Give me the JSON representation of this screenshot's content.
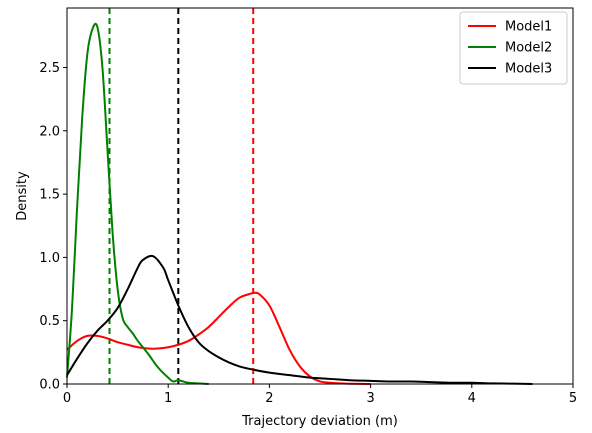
{
  "chart_data": {
    "type": "line",
    "title": "",
    "xlabel": "Trajectory deviation (m)",
    "ylabel": "Density",
    "xlim": [
      0,
      5
    ],
    "ylim": [
      0,
      2.97
    ],
    "xticks": [
      "0",
      "1",
      "2",
      "3",
      "4",
      "5"
    ],
    "yticks": [
      "0.0",
      "0.5",
      "1.0",
      "1.5",
      "2.0",
      "2.5"
    ],
    "grid": false,
    "legend_position": "top-right",
    "series": [
      {
        "name": "Model1",
        "color": "#ff0000",
        "x": [
          0,
          0.1,
          0.2,
          0.3,
          0.4,
          0.5,
          0.6,
          0.7,
          0.8,
          0.9,
          1.0,
          1.1,
          1.2,
          1.3,
          1.4,
          1.5,
          1.6,
          1.7,
          1.8,
          1.85,
          1.9,
          2.0,
          2.1,
          2.2,
          2.3,
          2.4,
          2.5,
          2.6,
          2.7,
          2.8,
          3.0
        ],
        "y": [
          0.27,
          0.34,
          0.38,
          0.38,
          0.36,
          0.33,
          0.31,
          0.29,
          0.28,
          0.28,
          0.29,
          0.31,
          0.34,
          0.39,
          0.45,
          0.53,
          0.61,
          0.68,
          0.71,
          0.72,
          0.71,
          0.62,
          0.45,
          0.27,
          0.14,
          0.06,
          0.02,
          0.01,
          0.005,
          0.002,
          0.0
        ]
      },
      {
        "name": "Model2",
        "color": "#008000",
        "x": [
          0,
          0.05,
          0.1,
          0.15,
          0.2,
          0.25,
          0.3,
          0.35,
          0.4,
          0.45,
          0.5,
          0.55,
          0.6,
          0.65,
          0.7,
          0.8,
          0.9,
          1.0,
          1.05,
          1.1,
          1.2,
          1.3,
          1.4
        ],
        "y": [
          0.05,
          0.6,
          1.4,
          2.1,
          2.6,
          2.8,
          2.82,
          2.5,
          1.85,
          1.2,
          0.75,
          0.52,
          0.45,
          0.4,
          0.34,
          0.24,
          0.13,
          0.05,
          0.02,
          0.03,
          0.01,
          0.005,
          0.0
        ]
      },
      {
        "name": "Model3",
        "color": "#000000",
        "x": [
          0,
          0.1,
          0.2,
          0.3,
          0.4,
          0.5,
          0.6,
          0.7,
          0.75,
          0.85,
          0.95,
          1.0,
          1.1,
          1.2,
          1.3,
          1.4,
          1.5,
          1.6,
          1.7,
          1.8,
          2.0,
          2.2,
          2.4,
          2.6,
          2.8,
          3.0,
          3.2,
          3.4,
          3.6,
          3.8,
          4.0,
          4.2,
          4.4,
          4.6
        ],
        "y": [
          0.07,
          0.2,
          0.32,
          0.42,
          0.5,
          0.6,
          0.75,
          0.92,
          0.98,
          1.01,
          0.92,
          0.82,
          0.62,
          0.45,
          0.33,
          0.26,
          0.21,
          0.17,
          0.14,
          0.12,
          0.09,
          0.07,
          0.05,
          0.04,
          0.03,
          0.025,
          0.02,
          0.02,
          0.015,
          0.01,
          0.01,
          0.005,
          0.003,
          0.0
        ]
      }
    ],
    "vertical_lines": [
      {
        "x": 0.42,
        "color": "#008000",
        "style": "dashed"
      },
      {
        "x": 1.1,
        "color": "#000000",
        "style": "dashed"
      },
      {
        "x": 1.84,
        "color": "#ff0000",
        "style": "dashed"
      }
    ]
  }
}
